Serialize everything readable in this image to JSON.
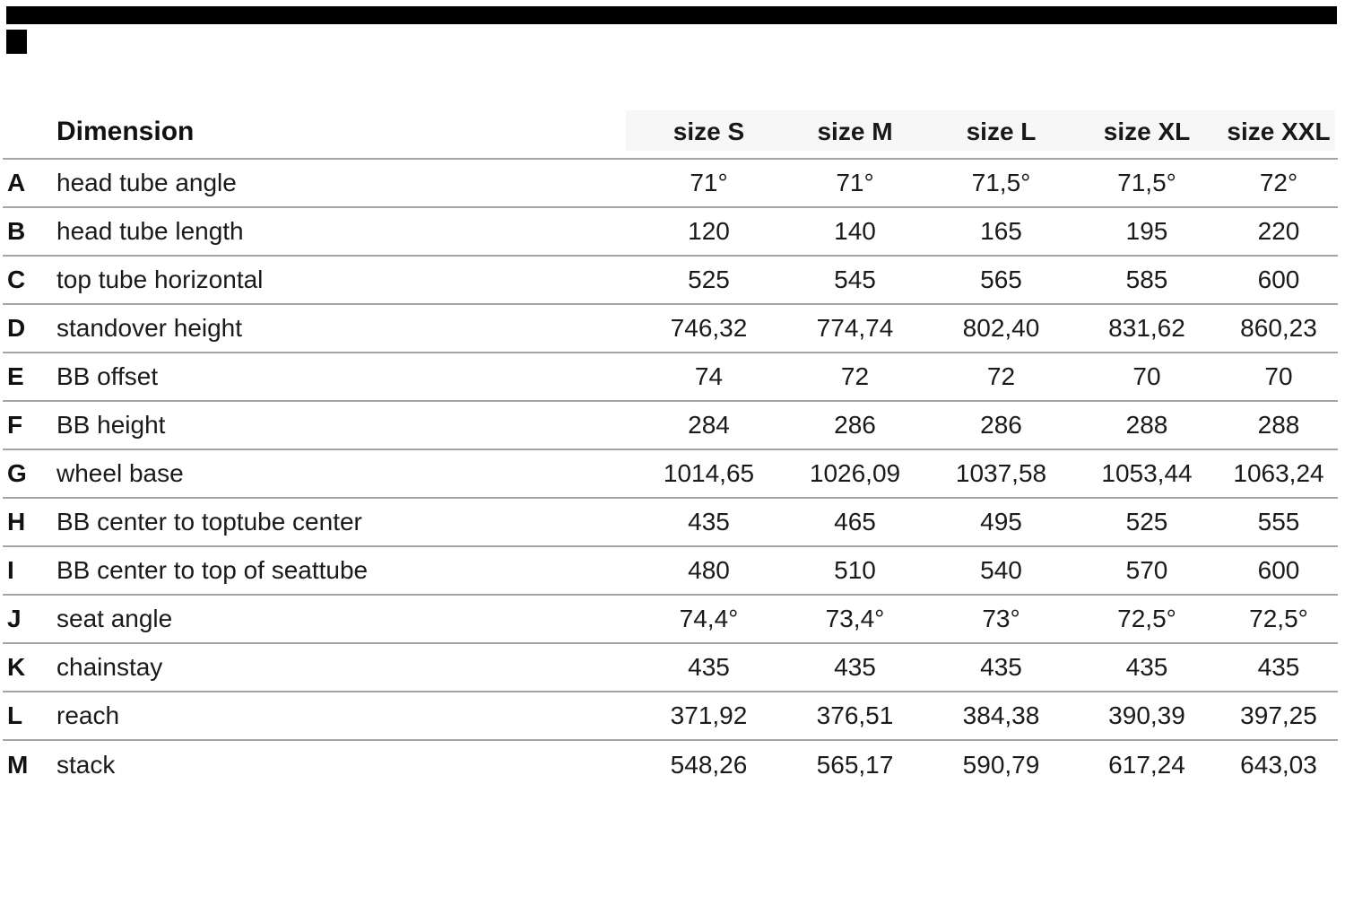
{
  "page": {
    "background_color": "#ffffff",
    "text_color": "#1a1a1a",
    "rule_color": "#a5a5a5",
    "header_band_color": "#f7f7f7",
    "redaction_color": "#000000"
  },
  "table": {
    "header": {
      "dimension_label": "Dimension",
      "size_columns": [
        "size S",
        "size M",
        "size L",
        "size XL",
        "size XXL"
      ]
    },
    "rows": [
      {
        "letter": "A",
        "label": "head tube angle",
        "values": [
          "71°",
          "71°",
          "71,5°",
          "71,5°",
          "72°"
        ]
      },
      {
        "letter": "B",
        "label": "head tube length",
        "values": [
          "120",
          "140",
          "165",
          "195",
          "220"
        ]
      },
      {
        "letter": "C",
        "label": "top tube horizontal",
        "values": [
          "525",
          "545",
          "565",
          "585",
          "600"
        ]
      },
      {
        "letter": "D",
        "label": "standover height",
        "values": [
          "746,32",
          "774,74",
          "802,40",
          "831,62",
          "860,23"
        ]
      },
      {
        "letter": "E",
        "label": "BB offset",
        "values": [
          "74",
          "72",
          "72",
          "70",
          "70"
        ]
      },
      {
        "letter": "F",
        "label": "BB height",
        "values": [
          "284",
          "286",
          "286",
          "288",
          "288"
        ]
      },
      {
        "letter": "G",
        "label": "wheel base",
        "values": [
          "1014,65",
          "1026,09",
          "1037,58",
          "1053,44",
          "1063,24"
        ]
      },
      {
        "letter": "H",
        "label": "BB center to toptube center",
        "values": [
          "435",
          "465",
          "495",
          "525",
          "555"
        ]
      },
      {
        "letter": "I",
        "label": "BB center to top of seattube",
        "values": [
          "480",
          "510",
          "540",
          "570",
          "600"
        ]
      },
      {
        "letter": "J",
        "label": "seat angle",
        "values": [
          "74,4°",
          "73,4°",
          "73°",
          "72,5°",
          "72,5°"
        ]
      },
      {
        "letter": "K",
        "label": "chainstay",
        "values": [
          "435",
          "435",
          "435",
          "435",
          "435"
        ]
      },
      {
        "letter": "L",
        "label": "reach",
        "values": [
          "371,92",
          "376,51",
          "384,38",
          "390,39",
          "397,25"
        ]
      },
      {
        "letter": "M",
        "label": "stack",
        "values": [
          "548,26",
          "565,17",
          "590,79",
          "617,24",
          "643,03"
        ]
      }
    ]
  },
  "chart_data": {
    "type": "table",
    "title": "Dimension",
    "columns": [
      "",
      "Dimension",
      "size S",
      "size M",
      "size L",
      "size XL",
      "size XXL"
    ],
    "rows": [
      [
        "A",
        "head tube angle",
        "71°",
        "71°",
        "71,5°",
        "71,5°",
        "72°"
      ],
      [
        "B",
        "head tube length",
        "120",
        "140",
        "165",
        "195",
        "220"
      ],
      [
        "C",
        "top tube horizontal",
        "525",
        "545",
        "565",
        "585",
        "600"
      ],
      [
        "D",
        "standover height",
        "746,32",
        "774,74",
        "802,40",
        "831,62",
        "860,23"
      ],
      [
        "E",
        "BB offset",
        "74",
        "72",
        "72",
        "70",
        "70"
      ],
      [
        "F",
        "BB height",
        "284",
        "286",
        "286",
        "288",
        "288"
      ],
      [
        "G",
        "wheel base",
        "1014,65",
        "1026,09",
        "1037,58",
        "1053,44",
        "1063,24"
      ],
      [
        "H",
        "BB center to toptube center",
        "435",
        "465",
        "495",
        "525",
        "555"
      ],
      [
        "I",
        "BB center to top of seattube",
        "480",
        "510",
        "540",
        "570",
        "600"
      ],
      [
        "J",
        "seat angle",
        "74,4°",
        "73,4°",
        "73°",
        "72,5°",
        "72,5°"
      ],
      [
        "K",
        "chainstay",
        "435",
        "435",
        "435",
        "435",
        "435"
      ],
      [
        "L",
        "reach",
        "371,92",
        "376,51",
        "384,38",
        "390,39",
        "397,25"
      ],
      [
        "M",
        "stack",
        "548,26",
        "565,17",
        "590,79",
        "617,24",
        "643,03"
      ]
    ],
    "layout_hints": {
      "grid": "horizontal rules between rows only",
      "header_background": "#f7f7f7 behind size columns",
      "value_alignment": "center",
      "no_bottom_border": true
    }
  }
}
